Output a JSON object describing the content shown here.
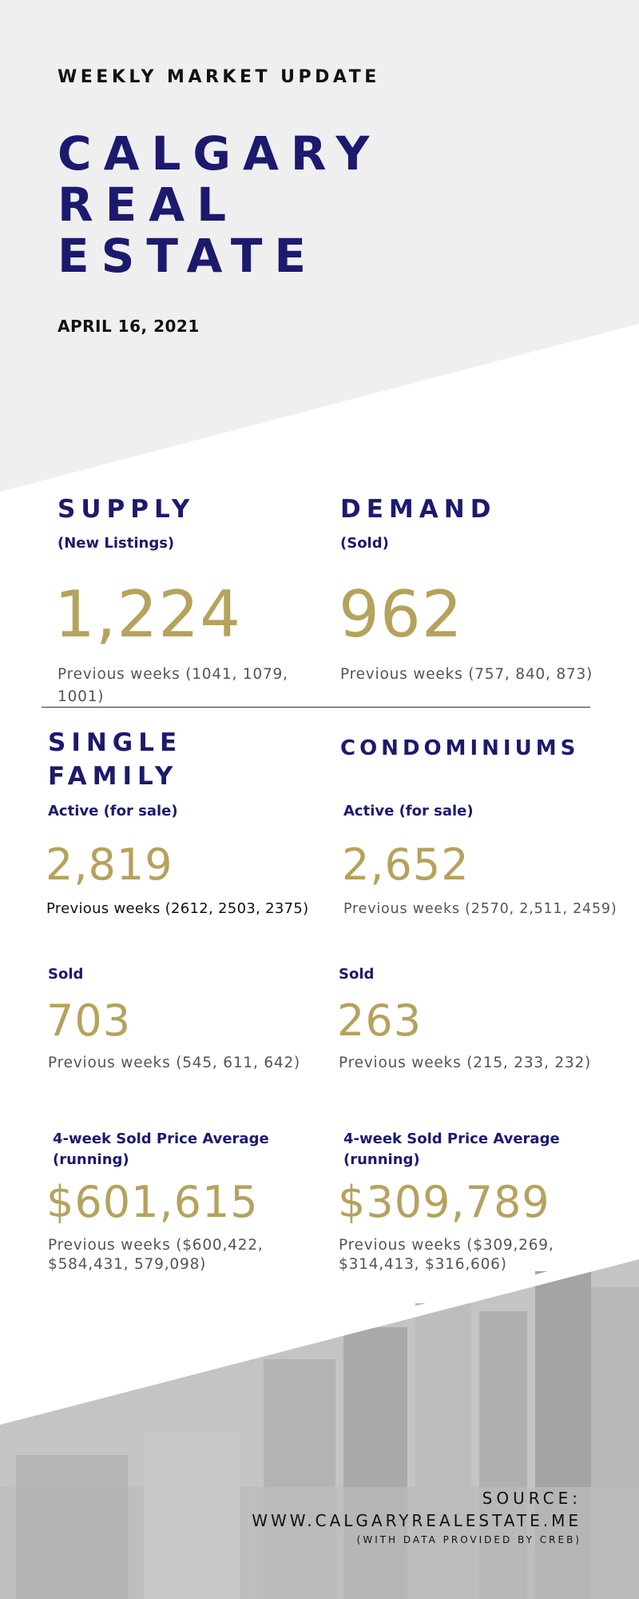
{
  "header": {
    "eyebrow": "WEEKLY MARKET UPDATE",
    "title_lines": [
      "CALGARY",
      "REAL",
      "ESTATE"
    ],
    "date": "APRIL 16, 2021"
  },
  "supply": {
    "heading": "SUPPLY",
    "subheading": "(New Listings)",
    "value": "1,224",
    "previous": "Previous weeks (1041, 1079, 1001)"
  },
  "demand": {
    "heading": "DEMAND",
    "subheading": "(Sold)",
    "value": "962",
    "previous": "Previous weeks (757, 840, 873)"
  },
  "single_family": {
    "heading_lines": [
      "SINGLE",
      "FAMILY"
    ],
    "active_label": "Active (for sale)",
    "active_value": "2,819",
    "active_previous": "Previous weeks (2612, 2503, 2375)",
    "sold_label": "Sold",
    "sold_value": "703",
    "sold_previous": "Previous weeks (545, 611, 642)",
    "avg_label": "4-week Sold Price Average (running)",
    "avg_value": "$601,615",
    "avg_previous": "Previous weeks ($600,422, $584,431, 579,098)"
  },
  "condominiums": {
    "heading": "CONDOMINIUMS",
    "active_label": "Active (for sale)",
    "active_value": "2,652",
    "active_previous": "Previous weeks (2570, 2,511, 2459)",
    "sold_label": "Sold",
    "sold_value": "263",
    "sold_previous": "Previous weeks (215, 233, 232)",
    "avg_label": "4-week Sold Price Average (running)",
    "avg_value": "$309,789",
    "avg_previous": "Previous weeks ($309,269, $314,413, $316,606)"
  },
  "footer": {
    "source_label": "SOURCE:",
    "source_url": "WWW.CALGARYREALESTATE.ME",
    "source_note": "(WITH DATA PROVIDED BY CREB)"
  },
  "colors": {
    "navy": "#1c1a6e",
    "gold": "#b5a25c",
    "header_bg": "#efeff0"
  }
}
